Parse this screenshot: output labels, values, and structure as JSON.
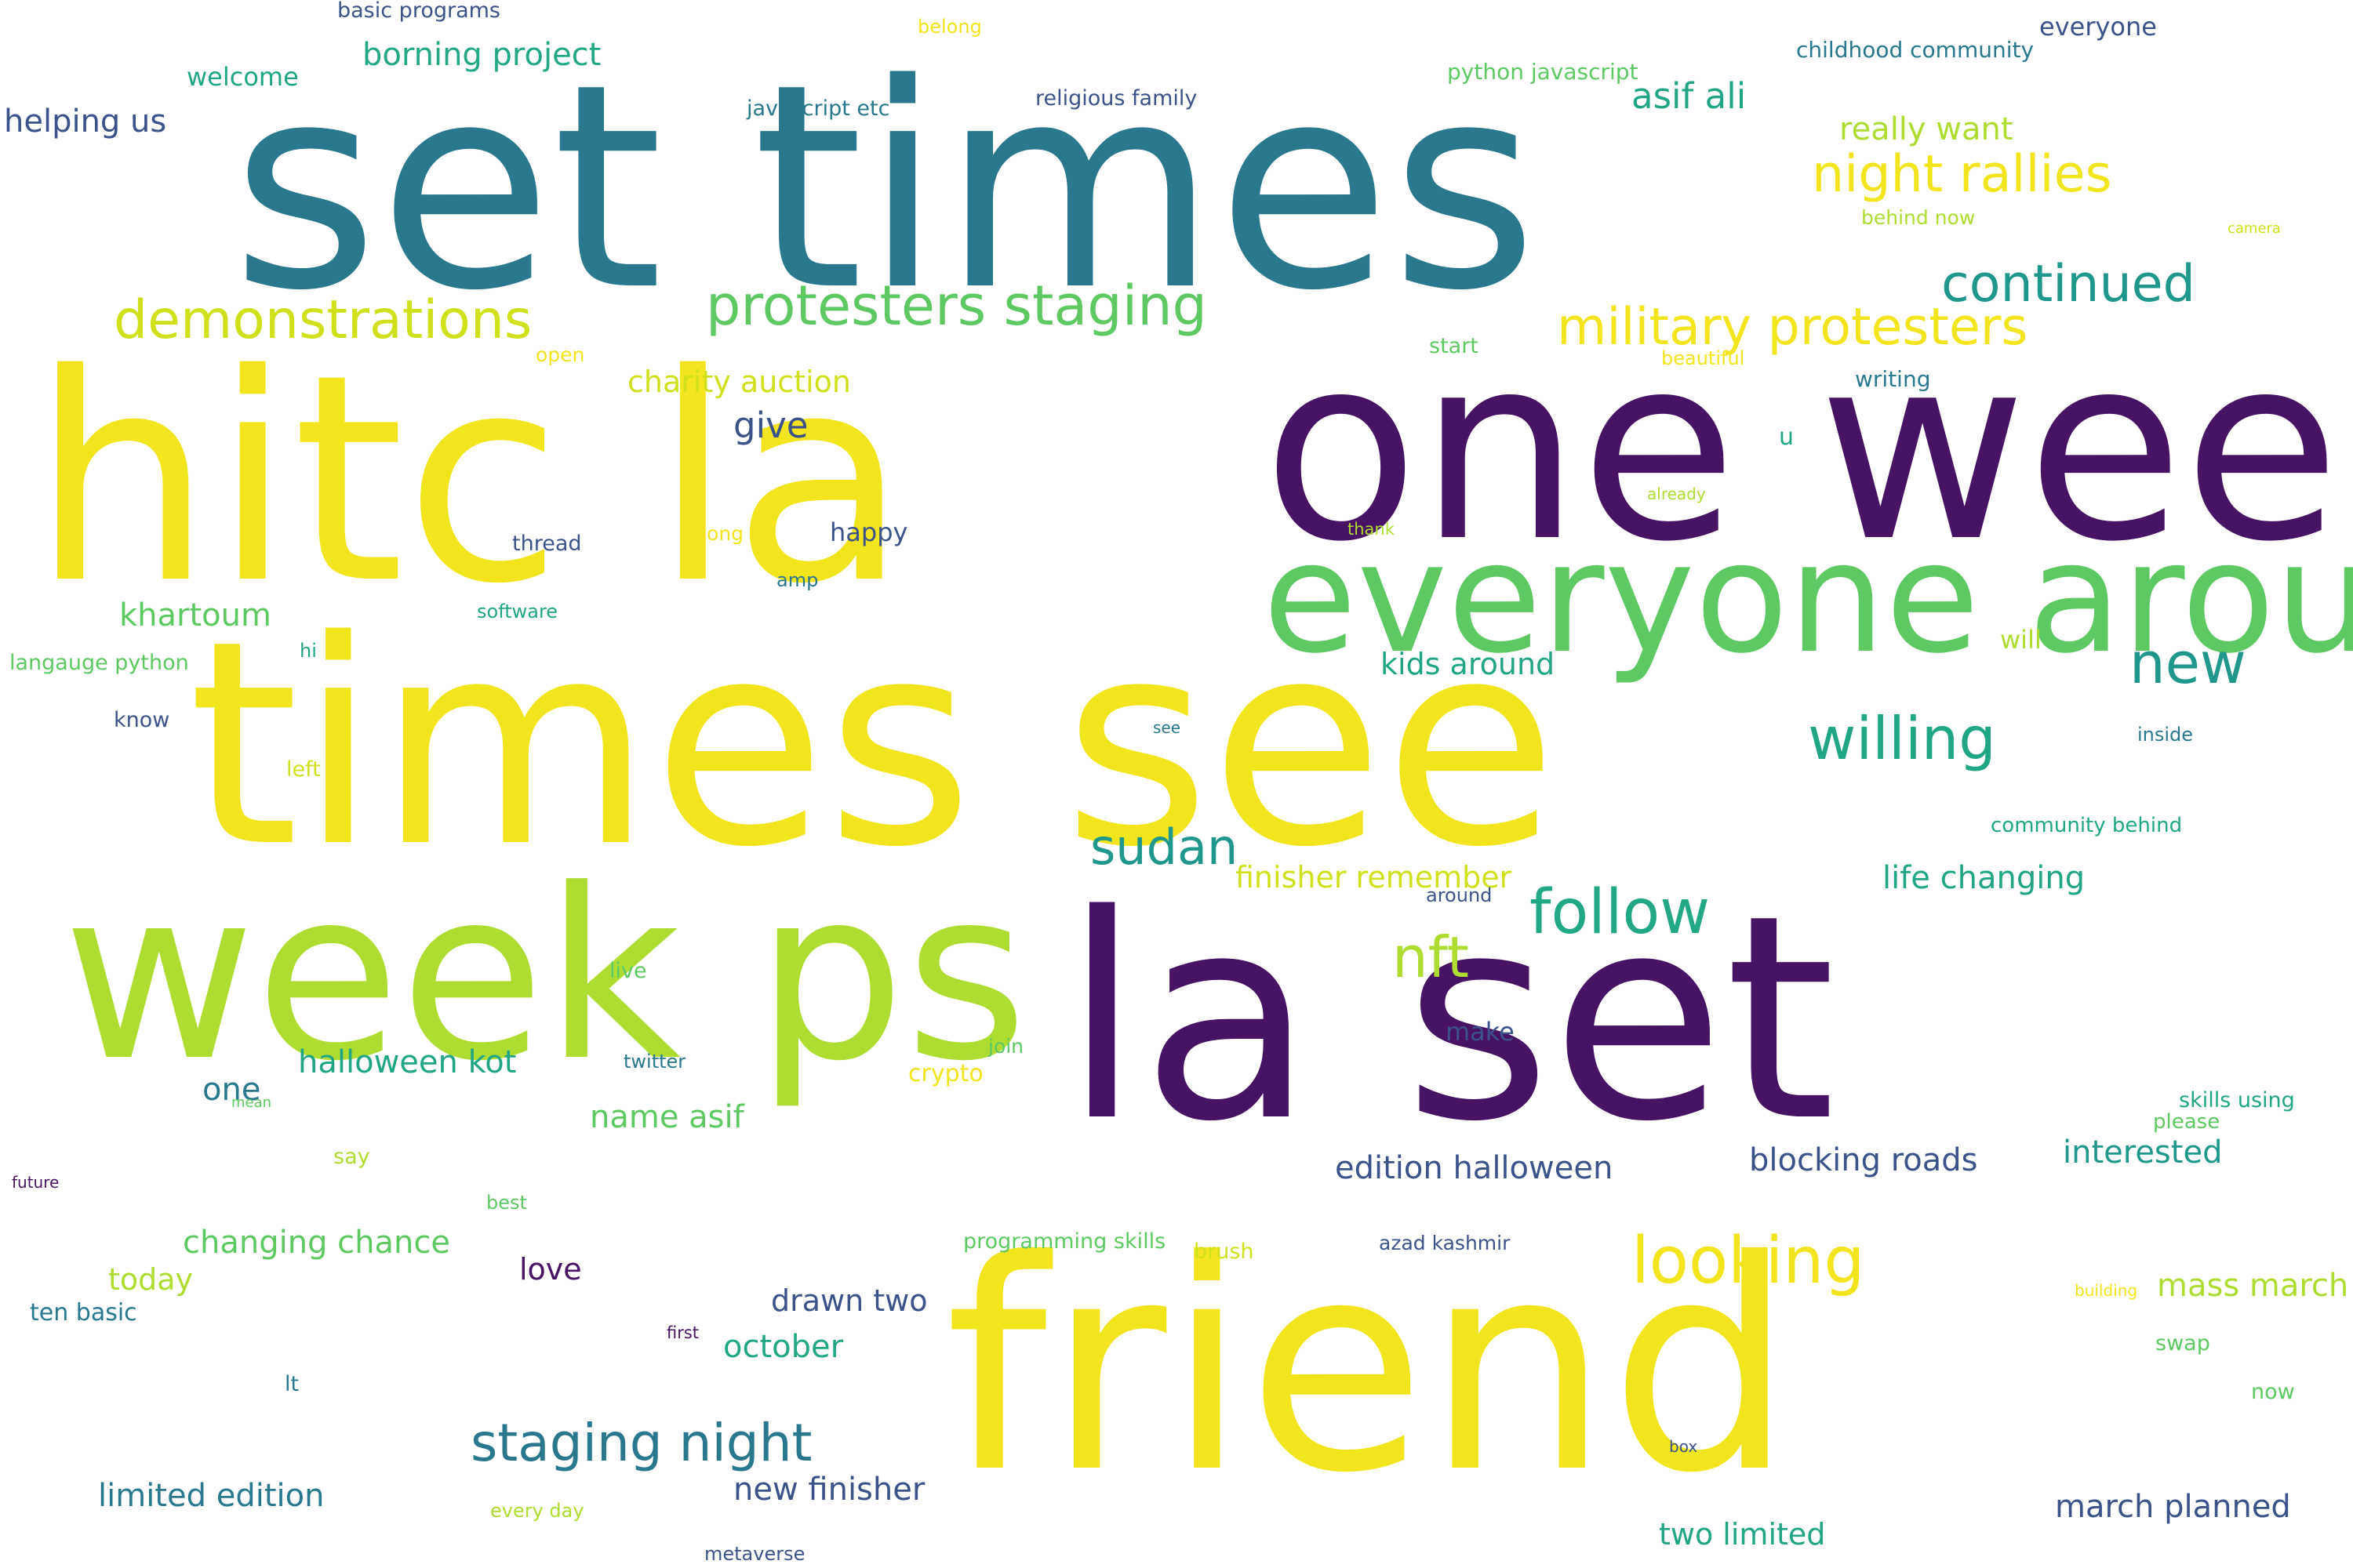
{
  "palette": {
    "yellow": "#f2e51d",
    "lime": "#aedc30",
    "green": "#5ec962",
    "teal_green": "#21a685",
    "teal": "#2a788e",
    "slate": "#3b528b",
    "purple": "#471365"
  },
  "words": [
    {
      "text": "set times",
      "color": "#2a788e"
    },
    {
      "text": "hitc la",
      "color": "#f2e51d"
    },
    {
      "text": "one week",
      "color": "#471365"
    },
    {
      "text": "times see",
      "color": "#f2e51d"
    },
    {
      "text": "everyone around",
      "color": "#5ec962"
    },
    {
      "text": "week ps",
      "color": "#aedc30"
    },
    {
      "text": "la set",
      "color": "#471365"
    },
    {
      "text": "friend",
      "color": "#f2e51d"
    },
    {
      "text": "protesters staging",
      "color": "#5ec962"
    },
    {
      "text": "demonstrations",
      "color": "#d0e11c"
    },
    {
      "text": "night rallies",
      "color": "#f2e51d"
    },
    {
      "text": "military protesters",
      "color": "#f2e51d"
    },
    {
      "text": "continued",
      "color": "#1f988b"
    },
    {
      "text": "asif ali",
      "color": "#21a685"
    },
    {
      "text": "really want",
      "color": "#aedc30"
    },
    {
      "text": "borning project",
      "color": "#22a884"
    },
    {
      "text": "helping us",
      "color": "#3b528b"
    },
    {
      "text": "welcome",
      "color": "#21a685"
    },
    {
      "text": "basic programs",
      "color": "#3b528b"
    },
    {
      "text": "javascript etc",
      "color": "#2a788e"
    },
    {
      "text": "religious family",
      "color": "#3b528b"
    },
    {
      "text": "belong",
      "color": "#f2e51d"
    },
    {
      "text": "python javascript",
      "color": "#5ec962"
    },
    {
      "text": "childhood community",
      "color": "#2a788e"
    },
    {
      "text": "everyone",
      "color": "#3b528b"
    },
    {
      "text": "behind now",
      "color": "#aedc30"
    },
    {
      "text": "camera",
      "color": "#d0e11c"
    },
    {
      "text": "charity auction",
      "color": "#d0e11c"
    },
    {
      "text": "give",
      "color": "#3b528b"
    },
    {
      "text": "open",
      "color": "#f2e51d"
    },
    {
      "text": "start",
      "color": "#5ec962"
    },
    {
      "text": "beautiful",
      "color": "#f2e51d"
    },
    {
      "text": "writing",
      "color": "#2a788e"
    },
    {
      "text": "u",
      "color": "#21a685"
    },
    {
      "text": "already",
      "color": "#aedc30"
    },
    {
      "text": "thank",
      "color": "#aedc30"
    },
    {
      "text": "song",
      "color": "#f2e51d"
    },
    {
      "text": "thread",
      "color": "#3b528b"
    },
    {
      "text": "happy",
      "color": "#3b528b"
    },
    {
      "text": "amp",
      "color": "#2a788e"
    },
    {
      "text": "software",
      "color": "#21a685"
    },
    {
      "text": "khartoum",
      "color": "#5ec962"
    },
    {
      "text": "hi",
      "color": "#21a685"
    },
    {
      "text": "langauge python",
      "color": "#5ec962"
    },
    {
      "text": "kids around",
      "color": "#21a685"
    },
    {
      "text": "new",
      "color": "#1f988b"
    },
    {
      "text": "will",
      "color": "#aedc30"
    },
    {
      "text": "willing",
      "color": "#21a685"
    },
    {
      "text": "know",
      "color": "#3b528b"
    },
    {
      "text": "left",
      "color": "#d0e11c"
    },
    {
      "text": "see",
      "color": "#2a788e"
    },
    {
      "text": "inside",
      "color": "#2a788e"
    },
    {
      "text": "sudan",
      "color": "#1f988b"
    },
    {
      "text": "community behind",
      "color": "#21a685"
    },
    {
      "text": "finisher remember",
      "color": "#d0e11c"
    },
    {
      "text": "around",
      "color": "#3b528b"
    },
    {
      "text": "life changing",
      "color": "#21a685"
    },
    {
      "text": "follow",
      "color": "#22a884"
    },
    {
      "text": "nft",
      "color": "#aedc30"
    },
    {
      "text": "live",
      "color": "#5ec962"
    },
    {
      "text": "twitter",
      "color": "#2a788e"
    },
    {
      "text": "join",
      "color": "#5ec962"
    },
    {
      "text": "crypto",
      "color": "#f2e51d"
    },
    {
      "text": "make",
      "color": "#3b528b"
    },
    {
      "text": "halloween kot",
      "color": "#21a685"
    },
    {
      "text": "one",
      "color": "#2a788e"
    },
    {
      "text": "mean",
      "color": "#5ec962"
    },
    {
      "text": "name asif",
      "color": "#5ec962"
    },
    {
      "text": "say",
      "color": "#aedc30"
    },
    {
      "text": "edition halloween",
      "color": "#3b528b"
    },
    {
      "text": "blocking roads",
      "color": "#3b528b"
    },
    {
      "text": "interested",
      "color": "#1f988b"
    },
    {
      "text": "skills using",
      "color": "#21a685"
    },
    {
      "text": "please",
      "color": "#5ec962"
    },
    {
      "text": "future",
      "color": "#471365"
    },
    {
      "text": "best",
      "color": "#5ec962"
    },
    {
      "text": "changing chance",
      "color": "#5ec962"
    },
    {
      "text": "programming skills",
      "color": "#5ec962"
    },
    {
      "text": "brush",
      "color": "#d0e11c"
    },
    {
      "text": "azad kashmir",
      "color": "#3b528b"
    },
    {
      "text": "looking",
      "color": "#f2e51d"
    },
    {
      "text": "today",
      "color": "#aedc30"
    },
    {
      "text": "love",
      "color": "#471365"
    },
    {
      "text": "ten basic",
      "color": "#2a788e"
    },
    {
      "text": "drawn two",
      "color": "#3b528b"
    },
    {
      "text": "building",
      "color": "#f2e51d"
    },
    {
      "text": "mass march",
      "color": "#aedc30"
    },
    {
      "text": "first",
      "color": "#471365"
    },
    {
      "text": "october",
      "color": "#22a884"
    },
    {
      "text": "swap",
      "color": "#5ec962"
    },
    {
      "text": "lt",
      "color": "#2a788e"
    },
    {
      "text": "now",
      "color": "#5ec962"
    },
    {
      "text": "staging night",
      "color": "#2a788e"
    },
    {
      "text": "box",
      "color": "#3b528b"
    },
    {
      "text": "limited edition",
      "color": "#2a788e"
    },
    {
      "text": "new finisher",
      "color": "#3b528b"
    },
    {
      "text": "march planned",
      "color": "#3b528b"
    },
    {
      "text": "every day",
      "color": "#aedc30"
    },
    {
      "text": "two limited",
      "color": "#21a685"
    },
    {
      "text": "metaverse",
      "color": "#3b528b"
    }
  ]
}
